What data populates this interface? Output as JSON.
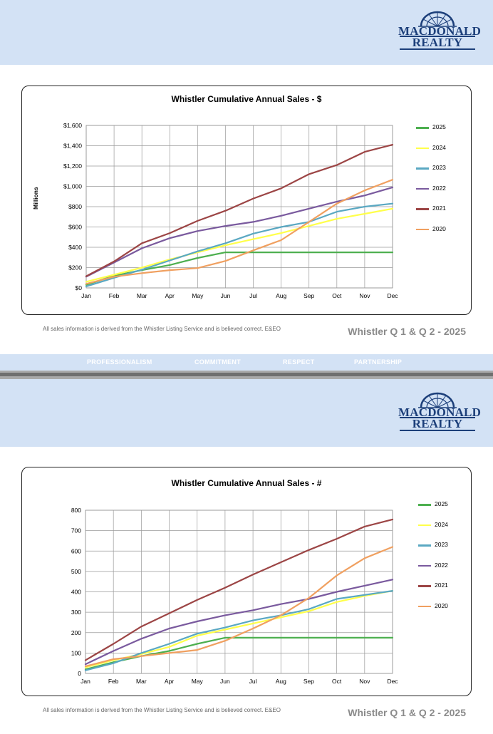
{
  "brand": {
    "line1": "MACDONALD",
    "line2": "REALTY"
  },
  "values": [
    "PROFESSIONALISM",
    "COMMITMENT",
    "RESPECT",
    "PARTNERSHIP"
  ],
  "footnote": "All sales information is derived from the Whistler Listing Service and is believed correct. E&EO",
  "page_label": "Whistler Q 1 & Q 2 - 2025",
  "colors": {
    "2025": "#4daf4f",
    "2024": "#ffff4a",
    "2023": "#5aa8c2",
    "2022": "#7a5a9e",
    "2021": "#9c4545",
    "2020": "#f0a060"
  },
  "chart_data": [
    {
      "type": "line",
      "title": "Whistler Cumulative Annual Sales - $",
      "ylabel": "Millions",
      "xlabel": "",
      "x": [
        "Jan",
        "Feb",
        "Mar",
        "Apr",
        "May",
        "Jun",
        "Jul",
        "Aug",
        "Sep",
        "Oct",
        "Nov",
        "Dec"
      ],
      "ylim": [
        0,
        1600
      ],
      "yticks": [
        0,
        200,
        400,
        600,
        800,
        1000,
        1200,
        1400,
        1600
      ],
      "ytick_labels": [
        "$0",
        "$200",
        "$400",
        "$600",
        "$800",
        "$1,000",
        "$1,200",
        "$1,400",
        "$1,600"
      ],
      "grid": true,
      "legend": "right",
      "series": [
        {
          "name": "2025",
          "values": [
            30,
            120,
            175,
            225,
            295,
            350,
            350,
            350,
            350,
            350,
            350,
            350
          ]
        },
        {
          "name": "2024",
          "values": [
            60,
            130,
            200,
            280,
            350,
            420,
            480,
            540,
            610,
            680,
            730,
            780
          ]
        },
        {
          "name": "2023",
          "values": [
            15,
            100,
            180,
            270,
            360,
            440,
            535,
            600,
            650,
            750,
            800,
            830
          ]
        },
        {
          "name": "2022",
          "values": [
            110,
            250,
            390,
            490,
            560,
            610,
            650,
            710,
            780,
            850,
            910,
            990
          ]
        },
        {
          "name": "2021",
          "values": [
            115,
            260,
            440,
            540,
            660,
            760,
            880,
            980,
            1120,
            1210,
            1340,
            1410
          ]
        },
        {
          "name": "2020",
          "values": [
            40,
            110,
            145,
            175,
            195,
            265,
            370,
            470,
            650,
            830,
            960,
            1065
          ]
        }
      ]
    },
    {
      "type": "line",
      "title": "Whistler Cumulative Annual Sales - #",
      "ylabel": "",
      "xlabel": "",
      "x": [
        "Jan",
        "Feb",
        "Mar",
        "Apr",
        "May",
        "Jun",
        "Jul",
        "Aug",
        "Sep",
        "Oct",
        "Nov",
        "Dec"
      ],
      "ylim": [
        0,
        800
      ],
      "yticks": [
        0,
        100,
        200,
        300,
        400,
        500,
        600,
        700,
        800
      ],
      "ytick_labels": [
        "0",
        "100",
        "200",
        "300",
        "400",
        "500",
        "600",
        "700",
        "800"
      ],
      "grid": true,
      "legend": "right",
      "series": [
        {
          "name": "2025",
          "values": [
            20,
            55,
            85,
            110,
            145,
            175,
            175,
            175,
            175,
            175,
            175,
            175
          ]
        },
        {
          "name": "2024",
          "values": [
            30,
            65,
            95,
            130,
            185,
            215,
            245,
            275,
            305,
            350,
            380,
            405
          ]
        },
        {
          "name": "2023",
          "values": [
            15,
            50,
            100,
            145,
            195,
            225,
            260,
            285,
            315,
            365,
            385,
            405
          ]
        },
        {
          "name": "2022",
          "values": [
            45,
            110,
            170,
            220,
            255,
            285,
            310,
            340,
            365,
            400,
            430,
            460
          ]
        },
        {
          "name": "2021",
          "values": [
            65,
            145,
            230,
            295,
            360,
            420,
            485,
            545,
            605,
            660,
            720,
            755
          ]
        },
        {
          "name": "2020",
          "values": [
            35,
            70,
            85,
            100,
            115,
            160,
            220,
            285,
            370,
            480,
            565,
            620
          ]
        }
      ]
    }
  ]
}
